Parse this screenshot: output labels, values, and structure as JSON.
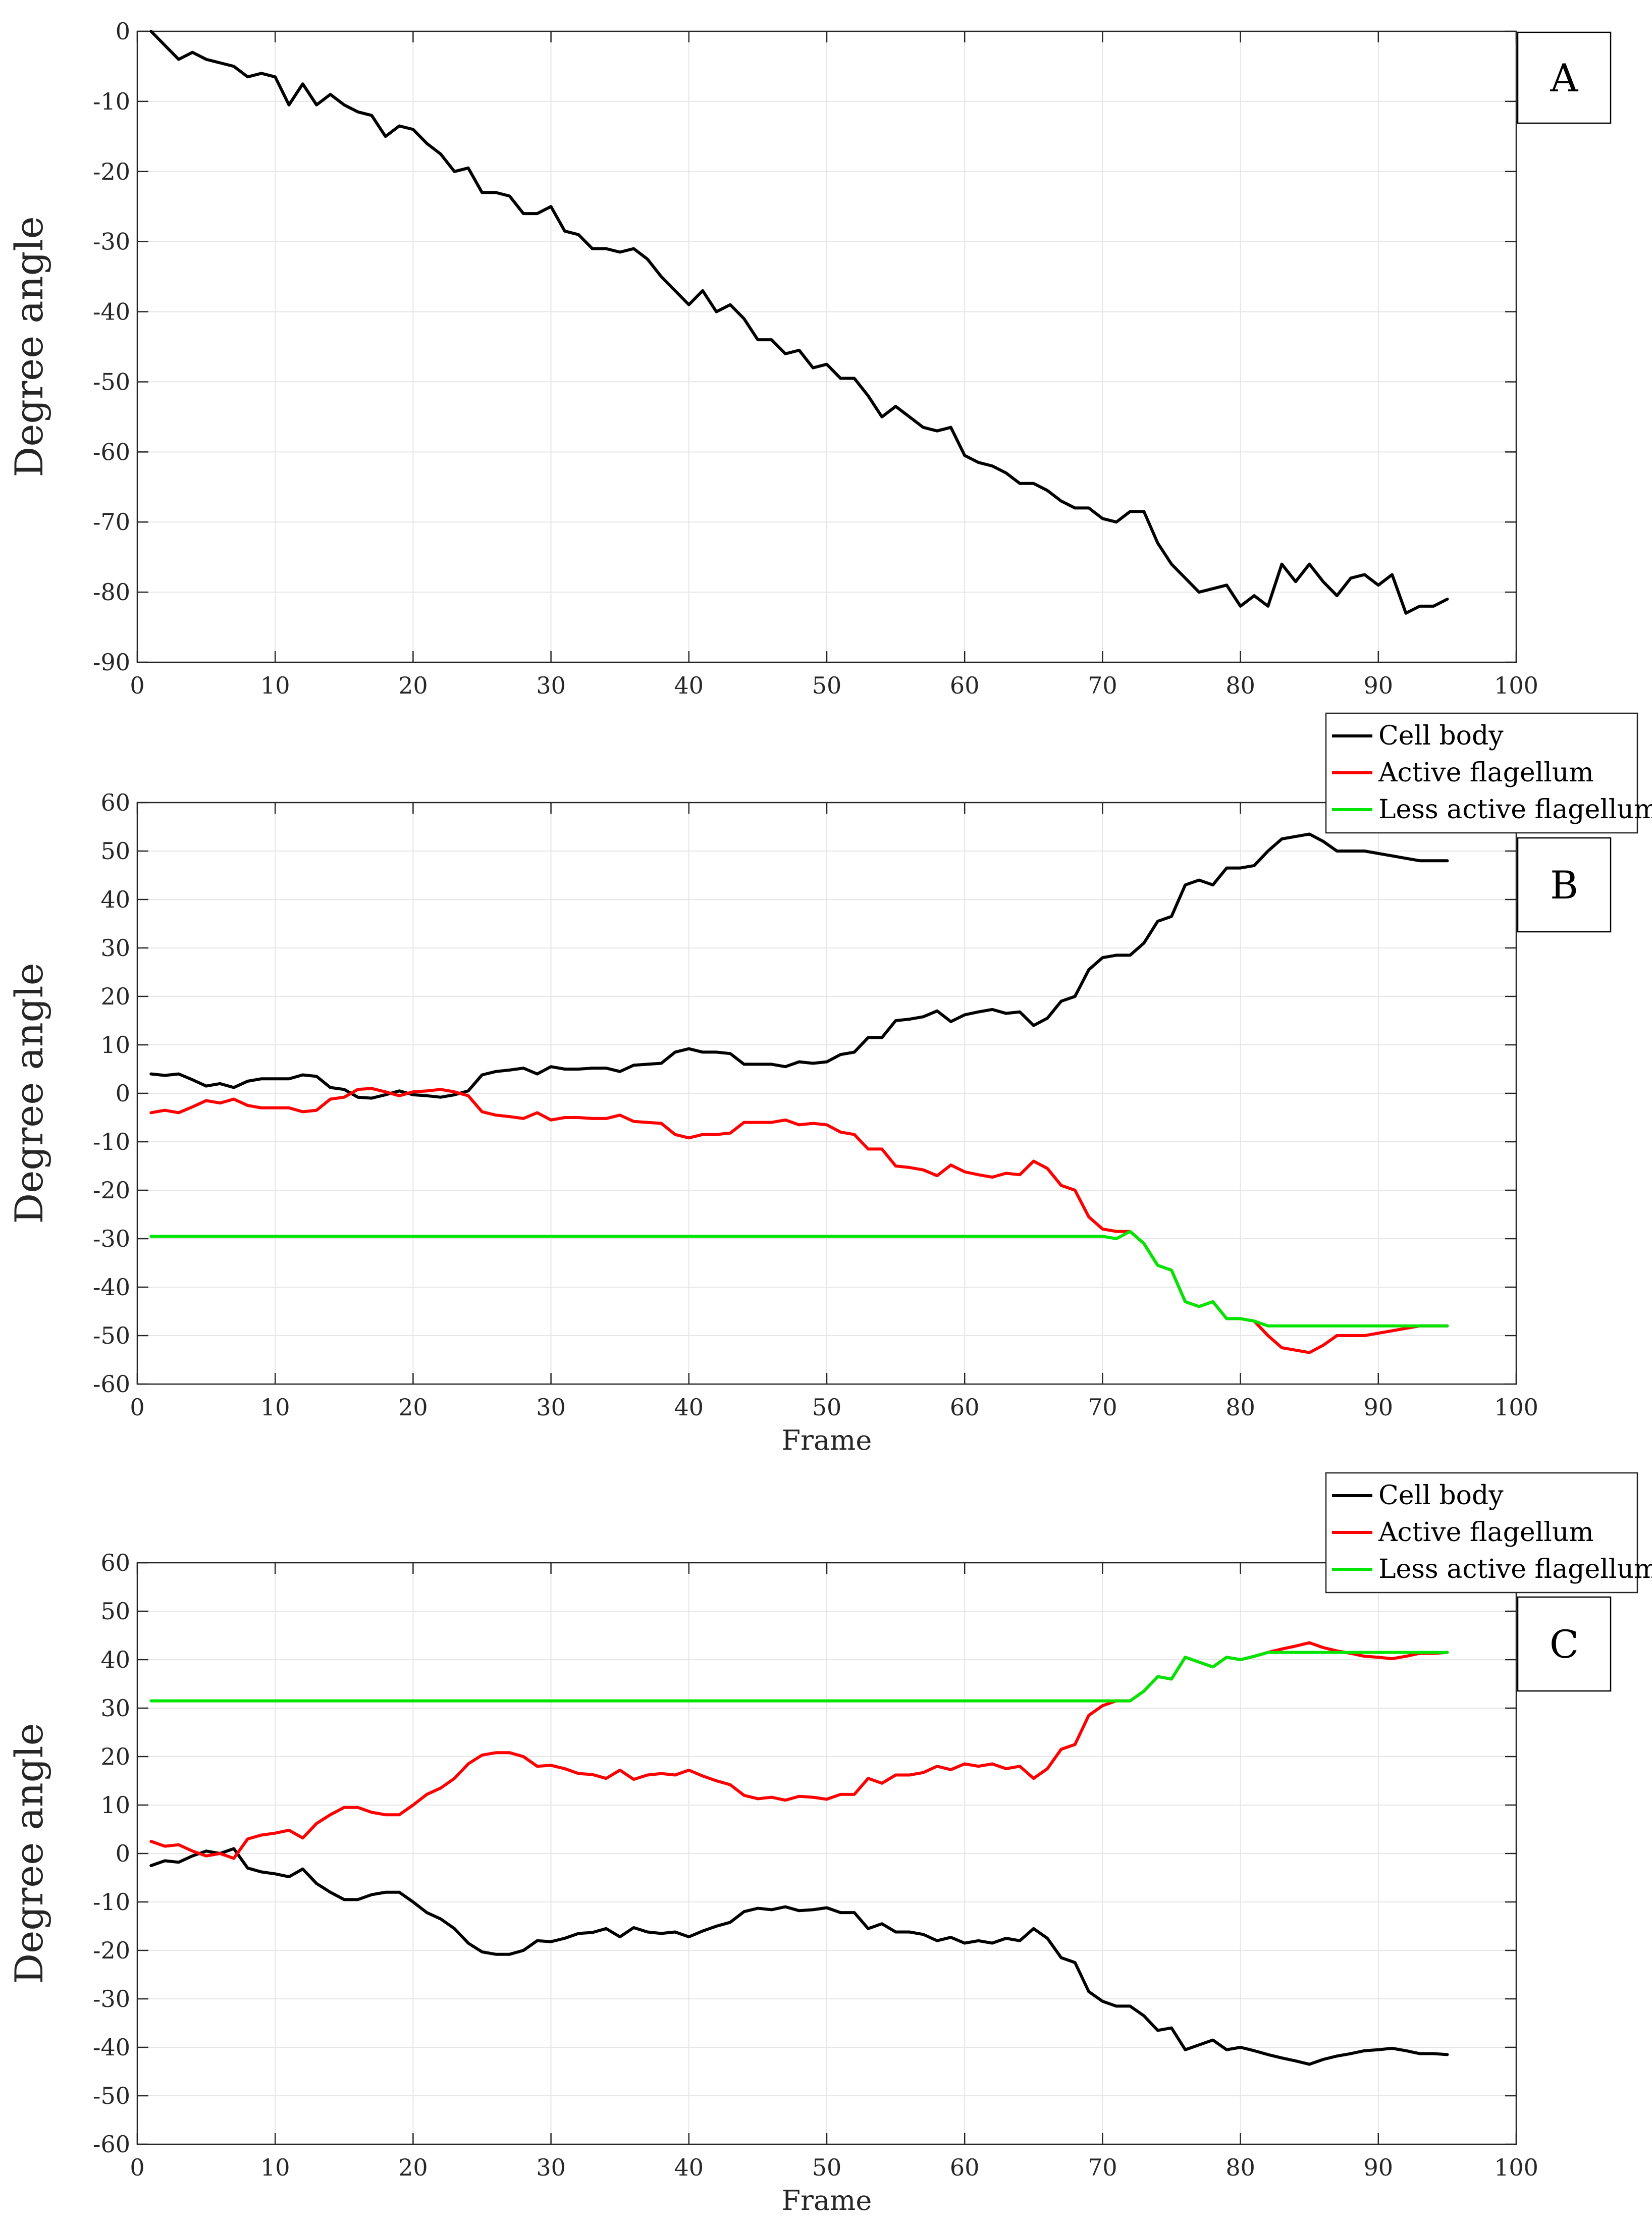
{
  "chart_data": [
    {
      "type": "line",
      "panel_label": "A",
      "title": "",
      "xlabel": "",
      "ylabel": "Degree angle",
      "xlim": [
        0,
        100
      ],
      "ylim": [
        -90,
        0
      ],
      "xticks": [
        "0",
        "10",
        "20",
        "30",
        "40",
        "50",
        "60",
        "70",
        "80",
        "90",
        "100"
      ],
      "yticks": [
        "0",
        "-10",
        "-20",
        "-30",
        "-40",
        "-50",
        "-60",
        "-70",
        "-80",
        "-90"
      ],
      "grid": true,
      "legend": null,
      "x": [
        1,
        2,
        3,
        4,
        5,
        6,
        7,
        8,
        9,
        10,
        11,
        12,
        13,
        14,
        15,
        16,
        17,
        18,
        19,
        20,
        21,
        22,
        23,
        24,
        25,
        26,
        27,
        28,
        29,
        30,
        31,
        32,
        33,
        34,
        35,
        36,
        37,
        38,
        39,
        40,
        41,
        42,
        43,
        44,
        45,
        46,
        47,
        48,
        49,
        50,
        51,
        52,
        53,
        54,
        55,
        56,
        57,
        58,
        59,
        60,
        61,
        62,
        63,
        64,
        65,
        66,
        67,
        68,
        69,
        70,
        71,
        72,
        73,
        74,
        75,
        76,
        77,
        78,
        79,
        80,
        81,
        82,
        83,
        84,
        85,
        86,
        87,
        88,
        89,
        90,
        91,
        92,
        93,
        94,
        95
      ],
      "series": [
        {
          "name": "Cell body",
          "color": "#000000",
          "values": [
            0,
            -2,
            -4,
            -3,
            -4,
            -4.5,
            -5,
            -6.5,
            -6,
            -6.5,
            -10.5,
            -7.5,
            -10.5,
            -9,
            -10.5,
            -11.5,
            -12,
            -15,
            -13.5,
            -14,
            -16,
            -17.5,
            -20,
            -19.5,
            -23,
            -23,
            -23.5,
            -26,
            -26,
            -25,
            -28.5,
            -29,
            -31,
            -31,
            -31.5,
            -31,
            -32.5,
            -35,
            -37,
            -39,
            -37,
            -40,
            -39,
            -41,
            -44,
            -44,
            -46,
            -45.5,
            -48,
            -47.5,
            -49.5,
            -49.5,
            -52,
            -55,
            -53.5,
            -55,
            -56.5,
            -57,
            -56.5,
            -60.5,
            -61.5,
            -62,
            -63,
            -64.5,
            -64.5,
            -65.5,
            -67,
            -68,
            -68,
            -69.5,
            -70,
            -68.5,
            -68.5,
            -73,
            -76,
            -78,
            -80,
            -79.5,
            -79,
            -82,
            -80.5,
            -82,
            -76,
            -78.5,
            -76,
            -78.5,
            -80.5,
            -78,
            -77.5,
            -79,
            -77.5,
            -83,
            -82,
            -82,
            -81
          ]
        }
      ]
    },
    {
      "type": "line",
      "panel_label": "B",
      "title": "",
      "xlabel": "Frame",
      "ylabel": "Degree angle",
      "xlim": [
        0,
        100
      ],
      "ylim": [
        -60,
        60
      ],
      "xticks": [
        "0",
        "10",
        "20",
        "30",
        "40",
        "50",
        "60",
        "70",
        "80",
        "90",
        "100"
      ],
      "yticks": [
        "60",
        "50",
        "40",
        "30",
        "20",
        "10",
        "0",
        "-10",
        "-20",
        "-30",
        "-40",
        "-50",
        "-60"
      ],
      "grid": true,
      "legend": {
        "placement": "top-right-outside",
        "entries": [
          "Cell body",
          "Active flagellum",
          "Less active flagellum"
        ]
      },
      "x": [
        1,
        2,
        3,
        4,
        5,
        6,
        7,
        8,
        9,
        10,
        11,
        12,
        13,
        14,
        15,
        16,
        17,
        18,
        19,
        20,
        21,
        22,
        23,
        24,
        25,
        26,
        27,
        28,
        29,
        30,
        31,
        32,
        33,
        34,
        35,
        36,
        37,
        38,
        39,
        40,
        41,
        42,
        43,
        44,
        45,
        46,
        47,
        48,
        49,
        50,
        51,
        52,
        53,
        54,
        55,
        56,
        57,
        58,
        59,
        60,
        61,
        62,
        63,
        64,
        65,
        66,
        67,
        68,
        69,
        70,
        71,
        72,
        73,
        74,
        75,
        76,
        77,
        78,
        79,
        80,
        81,
        82,
        83,
        84,
        85,
        86,
        87,
        88,
        89,
        90,
        91,
        92,
        93,
        94,
        95
      ],
      "series": [
        {
          "name": "Cell body",
          "color": "#000000",
          "values": [
            4,
            3.7,
            4,
            2.8,
            1.5,
            2,
            1.2,
            2.5,
            3,
            3,
            3,
            3.8,
            3.5,
            1.2,
            0.8,
            -0.8,
            -1,
            -0.3,
            0.5,
            -0.3,
            -0.5,
            -0.8,
            -0.3,
            0.5,
            3.8,
            4.5,
            4.8,
            5.2,
            4,
            5.5,
            5,
            5,
            5.2,
            5.2,
            4.5,
            5.8,
            6,
            6.2,
            8.5,
            9.2,
            8.5,
            8.5,
            8.2,
            6,
            6,
            6,
            5.5,
            6.5,
            6.2,
            6.5,
            8,
            8.5,
            11.5,
            11.5,
            15,
            15.3,
            15.8,
            17,
            14.8,
            16.2,
            16.8,
            17.3,
            16.5,
            16.8,
            14,
            15.5,
            19,
            20,
            25.5,
            28,
            28.5,
            28.5,
            31,
            35.5,
            36.5,
            43,
            44,
            43,
            46.5,
            46.5,
            47,
            50,
            52.5,
            53,
            53.5,
            52,
            50,
            50,
            50,
            49.5,
            49,
            48.5,
            48,
            48,
            48
          ]
        },
        {
          "name": "Active flagellum",
          "color": "#ff0000",
          "values": [
            -4,
            -3.5,
            -4,
            -2.8,
            -1.5,
            -2,
            -1.2,
            -2.5,
            -3,
            -3,
            -3,
            -3.8,
            -3.5,
            -1.2,
            -0.8,
            0.8,
            1,
            0.3,
            -0.5,
            0.3,
            0.5,
            0.8,
            0.3,
            -0.5,
            -3.8,
            -4.5,
            -4.8,
            -5.2,
            -4,
            -5.5,
            -5,
            -5,
            -5.2,
            -5.2,
            -4.5,
            -5.8,
            -6,
            -6.2,
            -8.5,
            -9.2,
            -8.5,
            -8.5,
            -8.2,
            -6,
            -6,
            -6,
            -5.5,
            -6.5,
            -6.2,
            -6.5,
            -8,
            -8.5,
            -11.5,
            -11.5,
            -15,
            -15.3,
            -15.8,
            -17,
            -14.8,
            -16.2,
            -16.8,
            -17.3,
            -16.5,
            -16.8,
            -14,
            -15.5,
            -19,
            -20,
            -25.5,
            -28,
            -28.5,
            -28.5,
            -31,
            -35.5,
            -36.5,
            -43,
            -44,
            -43,
            -46.5,
            -46.5,
            -47,
            -50,
            -52.5,
            -53,
            -53.5,
            -52,
            -50,
            -50,
            -50,
            -49.5,
            -49,
            -48.5,
            -48,
            -48,
            -48
          ]
        },
        {
          "name": "Less active flagellum",
          "color": "#00e600",
          "values": [
            -29.5,
            -29.5,
            -29.5,
            -29.5,
            -29.5,
            -29.5,
            -29.5,
            -29.5,
            -29.5,
            -29.5,
            -29.5,
            -29.5,
            -29.5,
            -29.5,
            -29.5,
            -29.5,
            -29.5,
            -29.5,
            -29.5,
            -29.5,
            -29.5,
            -29.5,
            -29.5,
            -29.5,
            -29.5,
            -29.5,
            -29.5,
            -29.5,
            -29.5,
            -29.5,
            -29.5,
            -29.5,
            -29.5,
            -29.5,
            -29.5,
            -29.5,
            -29.5,
            -29.5,
            -29.5,
            -29.5,
            -29.5,
            -29.5,
            -29.5,
            -29.5,
            -29.5,
            -29.5,
            -29.5,
            -29.5,
            -29.5,
            -29.5,
            -29.5,
            -29.5,
            -29.5,
            -29.5,
            -29.5,
            -29.5,
            -29.5,
            -29.5,
            -29.5,
            -29.5,
            -29.5,
            -29.5,
            -29.5,
            -29.5,
            -29.5,
            -29.5,
            -29.5,
            -29.5,
            -29.5,
            -29.5,
            -30,
            -28.5,
            -31,
            -35.5,
            -36.5,
            -43,
            -44,
            -43,
            -46.5,
            -46.5,
            -47,
            -48,
            -48,
            -48,
            -48,
            -48,
            -48,
            -48,
            -48,
            -48,
            -48,
            -48,
            -48,
            -48,
            -48
          ]
        }
      ]
    },
    {
      "type": "line",
      "panel_label": "C",
      "title": "",
      "xlabel": "Frame",
      "ylabel": "Degree angle",
      "xlim": [
        0,
        100
      ],
      "ylim": [
        -60,
        60
      ],
      "xticks": [
        "0",
        "10",
        "20",
        "30",
        "40",
        "50",
        "60",
        "70",
        "80",
        "90",
        "100"
      ],
      "yticks": [
        "60",
        "50",
        "40",
        "30",
        "20",
        "10",
        "0",
        "-10",
        "-20",
        "-30",
        "-40",
        "-50",
        "-60"
      ],
      "grid": true,
      "legend": {
        "placement": "top-right-outside",
        "entries": [
          "Cell body",
          "Active flagellum",
          "Less active flagellum"
        ]
      },
      "x": [
        1,
        2,
        3,
        4,
        5,
        6,
        7,
        8,
        9,
        10,
        11,
        12,
        13,
        14,
        15,
        16,
        17,
        18,
        19,
        20,
        21,
        22,
        23,
        24,
        25,
        26,
        27,
        28,
        29,
        30,
        31,
        32,
        33,
        34,
        35,
        36,
        37,
        38,
        39,
        40,
        41,
        42,
        43,
        44,
        45,
        46,
        47,
        48,
        49,
        50,
        51,
        52,
        53,
        54,
        55,
        56,
        57,
        58,
        59,
        60,
        61,
        62,
        63,
        64,
        65,
        66,
        67,
        68,
        69,
        70,
        71,
        72,
        73,
        74,
        75,
        76,
        77,
        78,
        79,
        80,
        81,
        82,
        83,
        84,
        85,
        86,
        87,
        88,
        89,
        90,
        91,
        92,
        93,
        94,
        95
      ],
      "series": [
        {
          "name": "Cell body",
          "color": "#000000",
          "values": [
            -2.5,
            -1.5,
            -1.8,
            -0.5,
            0.5,
            0,
            1,
            -3,
            -3.8,
            -4.2,
            -4.8,
            -3.2,
            -6.2,
            -8,
            -9.5,
            -9.5,
            -8.5,
            -8,
            -8,
            -10,
            -12.2,
            -13.5,
            -15.5,
            -18.5,
            -20.3,
            -20.8,
            -20.8,
            -20,
            -18,
            -18.2,
            -17.5,
            -16.5,
            -16.3,
            -15.5,
            -17.2,
            -15.3,
            -16.2,
            -16.5,
            -16.2,
            -17.2,
            -16,
            -15,
            -14.2,
            -12,
            -11.3,
            -11.6,
            -11,
            -11.8,
            -11.6,
            -11.2,
            -12.2,
            -12.2,
            -15.5,
            -14.5,
            -16.2,
            -16.2,
            -16.7,
            -18,
            -17.3,
            -18.5,
            -18,
            -18.5,
            -17.5,
            -18,
            -15.5,
            -17.5,
            -21.5,
            -22.5,
            -28.5,
            -30.5,
            -31.5,
            -31.5,
            -33.5,
            -36.5,
            -36,
            -40.5,
            -39.5,
            -38.5,
            -40.5,
            -40,
            -40.7,
            -41.5,
            -42.2,
            -42.8,
            -43.5,
            -42.5,
            -41.8,
            -41.3,
            -40.7,
            -40.5,
            -40.2,
            -40.7,
            -41.3,
            -41.3,
            -41.5
          ]
        },
        {
          "name": "Active flagellum",
          "color": "#ff0000",
          "values": [
            2.5,
            1.5,
            1.8,
            0.5,
            -0.5,
            0,
            -1,
            3,
            3.8,
            4.2,
            4.8,
            3.2,
            6.2,
            8,
            9.5,
            9.5,
            8.5,
            8,
            8,
            10,
            12.2,
            13.5,
            15.5,
            18.5,
            20.3,
            20.8,
            20.8,
            20,
            18,
            18.2,
            17.5,
            16.5,
            16.3,
            15.5,
            17.2,
            15.3,
            16.2,
            16.5,
            16.2,
            17.2,
            16,
            15,
            14.2,
            12,
            11.3,
            11.6,
            11,
            11.8,
            11.6,
            11.2,
            12.2,
            12.2,
            15.5,
            14.5,
            16.2,
            16.2,
            16.7,
            18,
            17.3,
            18.5,
            18,
            18.5,
            17.5,
            18,
            15.5,
            17.5,
            21.5,
            22.5,
            28.5,
            30.5,
            31.5,
            31.5,
            33.5,
            36.5,
            36,
            40.5,
            39.5,
            38.5,
            40.5,
            40,
            40.7,
            41.5,
            42.2,
            42.8,
            43.5,
            42.5,
            41.8,
            41.3,
            40.7,
            40.5,
            40.2,
            40.7,
            41.3,
            41.3,
            41.5
          ]
        },
        {
          "name": "Less active flagellum",
          "color": "#00e600",
          "values": [
            31.5,
            31.5,
            31.5,
            31.5,
            31.5,
            31.5,
            31.5,
            31.5,
            31.5,
            31.5,
            31.5,
            31.5,
            31.5,
            31.5,
            31.5,
            31.5,
            31.5,
            31.5,
            31.5,
            31.5,
            31.5,
            31.5,
            31.5,
            31.5,
            31.5,
            31.5,
            31.5,
            31.5,
            31.5,
            31.5,
            31.5,
            31.5,
            31.5,
            31.5,
            31.5,
            31.5,
            31.5,
            31.5,
            31.5,
            31.5,
            31.5,
            31.5,
            31.5,
            31.5,
            31.5,
            31.5,
            31.5,
            31.5,
            31.5,
            31.5,
            31.5,
            31.5,
            31.5,
            31.5,
            31.5,
            31.5,
            31.5,
            31.5,
            31.5,
            31.5,
            31.5,
            31.5,
            31.5,
            31.5,
            31.5,
            31.5,
            31.5,
            31.5,
            31.5,
            31.5,
            31.5,
            31.5,
            33.5,
            36.5,
            36,
            40.5,
            39.5,
            38.5,
            40.5,
            40,
            40.7,
            41.5,
            41.5,
            41.5,
            41.5,
            41.5,
            41.5,
            41.5,
            41.5,
            41.5,
            41.5,
            41.5,
            41.5,
            41.5,
            41.5
          ]
        }
      ]
    }
  ]
}
